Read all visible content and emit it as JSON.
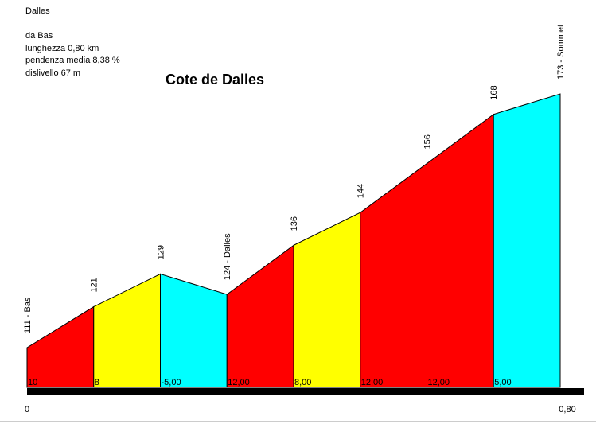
{
  "info": {
    "climb_name": "Dalles",
    "start_label": "da Bas",
    "length": "lunghezza 0,80 km",
    "avg_gradient": "pendenza media 8,38 %",
    "elevation_gain": "dislivello 67 m"
  },
  "chart_data": {
    "type": "area",
    "title": "Cote de Dalles",
    "xlabel": "",
    "ylabel": "",
    "x_ticks": [
      "0",
      "0,80"
    ],
    "x_range": [
      0,
      0.8
    ],
    "y_range": [
      105,
      175
    ],
    "grid": false,
    "legend": "none",
    "points": [
      {
        "x": 0.0,
        "altitude": 111,
        "label": "111 - Bas"
      },
      {
        "x": 0.1,
        "altitude": 121,
        "label": "121"
      },
      {
        "x": 0.2,
        "altitude": 129,
        "label": "129"
      },
      {
        "x": 0.3,
        "altitude": 124,
        "label": "124 - Dalles"
      },
      {
        "x": 0.4,
        "altitude": 136,
        "label": "136"
      },
      {
        "x": 0.5,
        "altitude": 144,
        "label": "144"
      },
      {
        "x": 0.6,
        "altitude": 156,
        "label": "156"
      },
      {
        "x": 0.7,
        "altitude": 168,
        "label": "168"
      },
      {
        "x": 0.8,
        "altitude": 173,
        "label": "173 - Sommet"
      }
    ],
    "segments": [
      {
        "gradient_label": "10",
        "color": "#ff0000"
      },
      {
        "gradient_label": "8",
        "color": "#ffff00"
      },
      {
        "gradient_label": "-5,00",
        "color": "#00ffff"
      },
      {
        "gradient_label": "12,00",
        "color": "#ff0000"
      },
      {
        "gradient_label": "8,00",
        "color": "#ffff00"
      },
      {
        "gradient_label": "12,00",
        "color": "#ff0000"
      },
      {
        "gradient_label": "12,00",
        "color": "#ff0000"
      },
      {
        "gradient_label": "5,00",
        "color": "#00ffff"
      }
    ]
  }
}
